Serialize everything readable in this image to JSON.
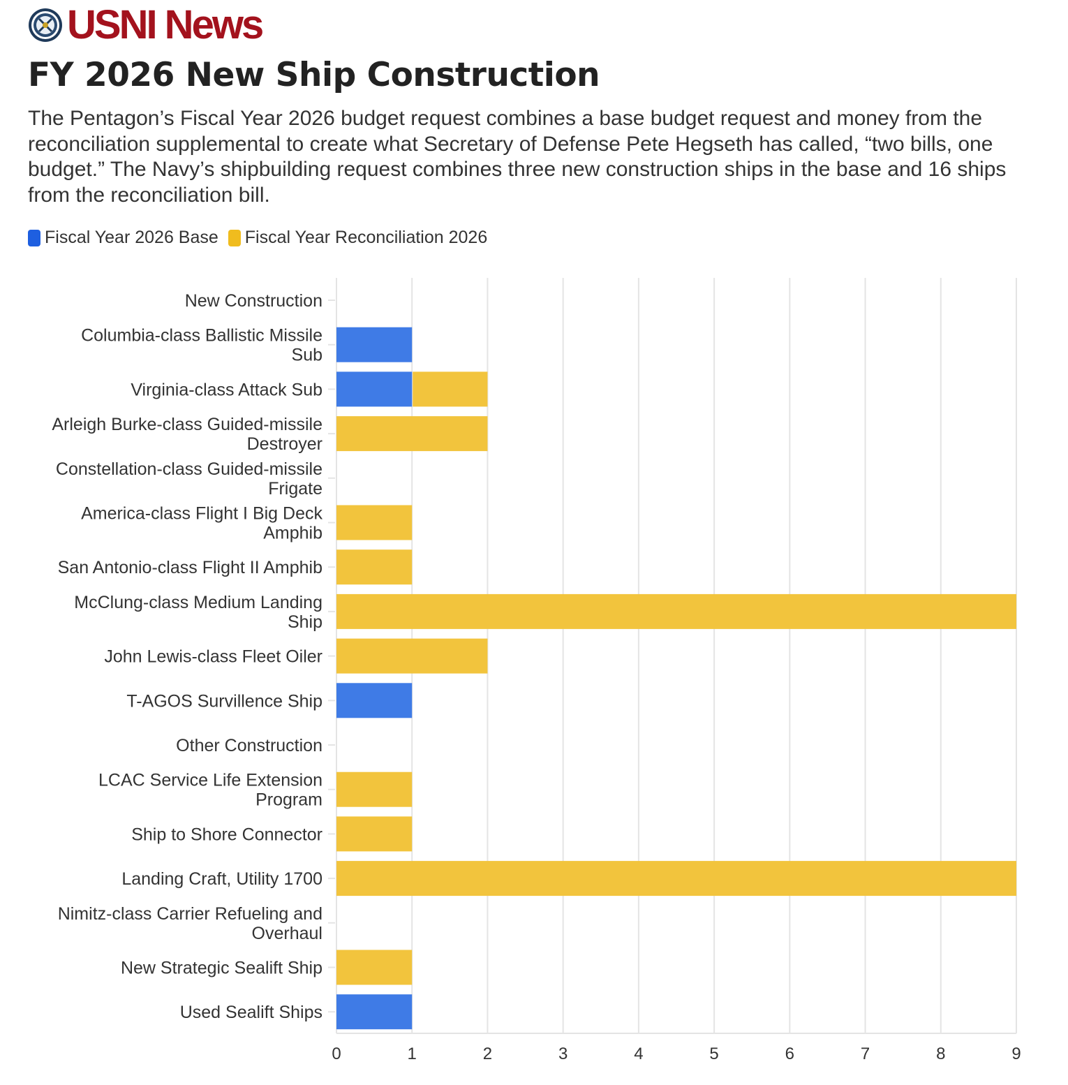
{
  "header": {
    "brand": "USNI News",
    "logo_icon": "naval-institute-seal-icon",
    "title": "FY 2026 New Ship Construction",
    "subtitle": "The Pentagon’s Fiscal Year 2026 budget request combines a base budget request and money from the reconciliation supplemental to create what Secretary of Defense Pete Hegseth has called, “two bills, one budget.” The Navy’s shipbuilding request combines three new construction ships in the base and 16 ships from the reconciliation bill."
  },
  "colors": {
    "base": "#3f7be6",
    "reconciliation": "#f2c43d",
    "legend_base": "#1e5fe0",
    "legend_reconciliation": "#f0bc1e",
    "brand": "#a3121d"
  },
  "chart_data": {
    "type": "bar",
    "orientation": "horizontal",
    "stacked": true,
    "title": "FY 2026 New Ship Construction",
    "categories": [
      "New Construction",
      "Columbia-class Ballistic Missile Sub",
      "Virginia-class Attack Sub",
      "Arleigh Burke-class Guided-missile Destroyer",
      "Constellation-class Guided-missile Frigate",
      "America-class Flight I Big Deck Amphib",
      "San Antonio-class Flight II Amphib",
      "McClung-class Medium Landing Ship",
      "John Lewis-class Fleet Oiler",
      "T-AGOS Survillence Ship",
      "Other Construction",
      "LCAC Service Life Extension Program",
      "Ship to Shore Connector",
      "Landing Craft, Utility 1700",
      "Nimitz-class Carrier Refueling and Overhaul",
      "New Strategic Sealift Ship",
      "Used Sealift Ships"
    ],
    "category_lines": [
      [
        "New Construction"
      ],
      [
        "Columbia-class Ballistic Missile",
        "Sub"
      ],
      [
        "Virginia-class Attack Sub"
      ],
      [
        "Arleigh Burke-class Guided-missile",
        "Destroyer"
      ],
      [
        "Constellation-class Guided-missile",
        "Frigate"
      ],
      [
        "America-class Flight I Big Deck",
        "Amphib"
      ],
      [
        "San Antonio-class Flight II Amphib"
      ],
      [
        "McClung-class Medium Landing",
        "Ship"
      ],
      [
        "John Lewis-class Fleet Oiler"
      ],
      [
        "T-AGOS Survillence Ship"
      ],
      [
        "Other Construction"
      ],
      [
        "LCAC Service Life Extension",
        "Program"
      ],
      [
        "Ship to Shore Connector"
      ],
      [
        "Landing Craft, Utility 1700"
      ],
      [
        "Nimitz-class Carrier Refueling and",
        "Overhaul"
      ],
      [
        "New Strategic Sealift Ship"
      ],
      [
        "Used Sealift Ships"
      ]
    ],
    "series": [
      {
        "name": "Fiscal Year 2026 Base",
        "color": "#3f7be6",
        "values": [
          0,
          1,
          1,
          0,
          0,
          0,
          0,
          0,
          0,
          1,
          0,
          0,
          0,
          0,
          0,
          0,
          1
        ]
      },
      {
        "name": "Fiscal Year Reconciliation 2026",
        "color": "#f2c43d",
        "values": [
          0,
          0,
          1,
          2,
          0,
          1,
          1,
          9,
          2,
          0,
          0,
          1,
          1,
          9,
          0,
          1,
          0
        ]
      }
    ],
    "xlim": [
      0,
      9
    ],
    "x_ticks": [
      "0",
      "1",
      "2",
      "3",
      "4",
      "5",
      "6",
      "7",
      "8",
      "9"
    ],
    "grid": true,
    "legend_position": "top-left"
  }
}
